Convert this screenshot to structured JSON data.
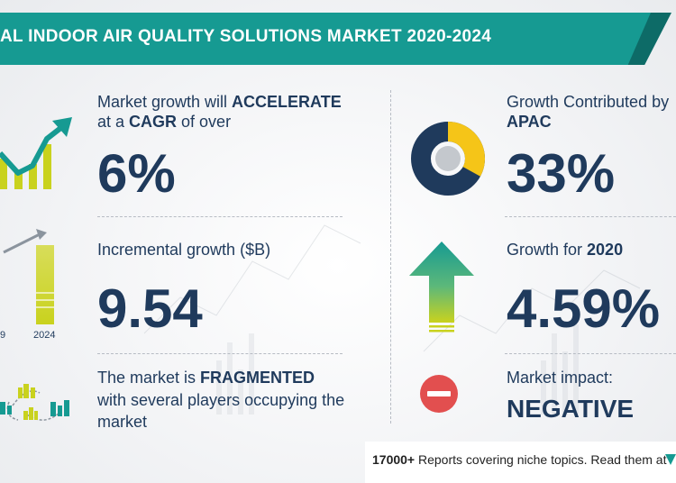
{
  "title": "AL INDOOR AIR QUALITY SOLUTIONS MARKET 2020-2024",
  "colors": {
    "teal": "#169a92",
    "dark_teal": "#0d6b67",
    "navy": "#1f3a5c",
    "yellow_green": "#c9d21e",
    "red": "#e24f4f"
  },
  "left": {
    "cagr": {
      "line1": "Market growth will ",
      "accelerate": "ACCELERATE",
      "line2a": "at a ",
      "cagr_word": "CAGR",
      "line2b": " of over",
      "value": "6%",
      "icon": "growth-chart-icon"
    },
    "incremental": {
      "label": "Incremental growth ($B)",
      "value": "9.54",
      "year_left": "9",
      "year_right": "2024",
      "icon": "bar-growth-icon"
    },
    "market": {
      "line1a": "The market is ",
      "fragmented": "FRAGMENTED",
      "line2": "with several players occupying the",
      "line3": "market",
      "icon": "city-network-icon"
    }
  },
  "right": {
    "apac": {
      "line1": "Growth Contributed by",
      "region": "APAC",
      "value": "33%",
      "share": 0.33,
      "icon": "donut-chart-icon"
    },
    "growth2020": {
      "label": "Growth for ",
      "year": "2020",
      "value": "4.59%",
      "icon": "up-arrow-icon"
    },
    "impact": {
      "label": "Market impact:",
      "value": "NEGATIVE",
      "icon": "minus-circle-icon"
    }
  },
  "footer": {
    "count": "17000+",
    "text": " Reports covering niche topics. Read them at"
  }
}
